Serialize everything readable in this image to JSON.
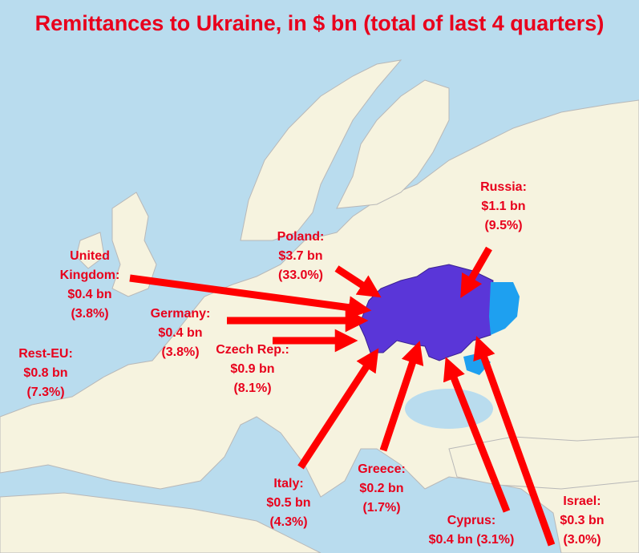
{
  "title": "Remittances to Ukraine, in $ bn (total of last 4 quarters)",
  "flows": [
    {
      "country": "Russia:",
      "amount": "$1.1 bn",
      "share": "(9.5%)"
    },
    {
      "country": "Poland:",
      "amount": "$3.7 bn",
      "share": "(33.0%)"
    },
    {
      "country": "United Kingdom:",
      "amount": "$0.4 bn",
      "share": "(3.8%)"
    },
    {
      "country": "Germany:",
      "amount": "$0.4 bn",
      "share": "(3.8%)"
    },
    {
      "country": "Rest-EU:",
      "amount": "$0.8 bn",
      "share": "(7.3%)"
    },
    {
      "country": "Czech Rep.:",
      "amount": "$0.9 bn",
      "share": "(8.1%)"
    },
    {
      "country": "Italy:",
      "amount": "$0.5 bn",
      "share": "(4.3%)"
    },
    {
      "country": "Greece:",
      "amount": "$0.2 bn",
      "share": "(1.7%)"
    },
    {
      "country": "Cyprus:",
      "amount": "$0.4 bn",
      "share": "(3.1%)"
    },
    {
      "country": "Israel:",
      "amount": "$0.3 bn",
      "share": "(3.0%)"
    }
  ]
}
